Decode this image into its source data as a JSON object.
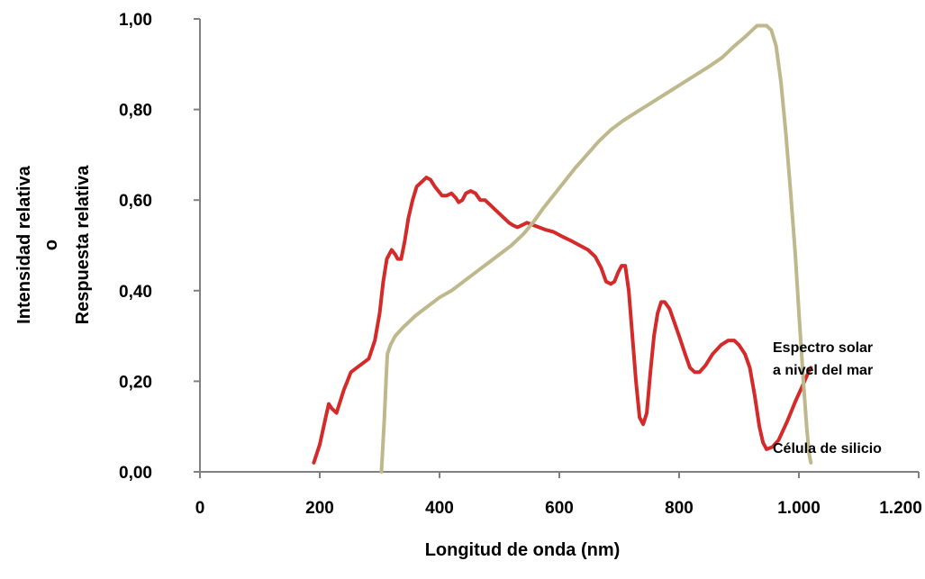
{
  "chart_data": {
    "type": "line",
    "title": "",
    "xlabel": "Longitud de onda (nm)",
    "ylabel_lines": [
      "Intensidad relativa",
      "o",
      "Respuesta relativa"
    ],
    "xlim": [
      0,
      1200
    ],
    "ylim": [
      0,
      1
    ],
    "x_ticks": [
      0,
      200,
      400,
      600,
      800,
      1000,
      1200
    ],
    "x_tick_labels": [
      "0",
      "200",
      "400",
      "600",
      "800",
      "1.000",
      "1.200"
    ],
    "y_ticks": [
      0,
      0.2,
      0.4,
      0.6,
      0.8,
      1.0
    ],
    "y_tick_labels": [
      "0,00",
      "0,20",
      "0,40",
      "0,60",
      "0,80",
      "1,00"
    ],
    "grid": false,
    "series": [
      {
        "name_lines": [
          "Espectro solar",
          "a nivel del mar"
        ],
        "color": "#d42a2a",
        "points": [
          [
            190,
            0.02
          ],
          [
            200,
            0.06
          ],
          [
            210,
            0.12
          ],
          [
            215,
            0.15
          ],
          [
            220,
            0.14
          ],
          [
            228,
            0.13
          ],
          [
            240,
            0.18
          ],
          [
            252,
            0.22
          ],
          [
            262,
            0.23
          ],
          [
            272,
            0.24
          ],
          [
            282,
            0.25
          ],
          [
            292,
            0.29
          ],
          [
            300,
            0.35
          ],
          [
            306,
            0.42
          ],
          [
            312,
            0.47
          ],
          [
            320,
            0.49
          ],
          [
            326,
            0.48
          ],
          [
            330,
            0.47
          ],
          [
            336,
            0.47
          ],
          [
            342,
            0.51
          ],
          [
            348,
            0.56
          ],
          [
            355,
            0.6
          ],
          [
            362,
            0.63
          ],
          [
            370,
            0.64
          ],
          [
            378,
            0.65
          ],
          [
            385,
            0.645
          ],
          [
            392,
            0.63
          ],
          [
            398,
            0.62
          ],
          [
            404,
            0.61
          ],
          [
            412,
            0.61
          ],
          [
            420,
            0.615
          ],
          [
            427,
            0.605
          ],
          [
            432,
            0.595
          ],
          [
            438,
            0.6
          ],
          [
            444,
            0.615
          ],
          [
            452,
            0.62
          ],
          [
            460,
            0.615
          ],
          [
            468,
            0.6
          ],
          [
            476,
            0.6
          ],
          [
            484,
            0.59
          ],
          [
            492,
            0.58
          ],
          [
            500,
            0.57
          ],
          [
            508,
            0.56
          ],
          [
            516,
            0.55
          ],
          [
            522,
            0.545
          ],
          [
            530,
            0.54
          ],
          [
            538,
            0.545
          ],
          [
            546,
            0.55
          ],
          [
            556,
            0.545
          ],
          [
            566,
            0.54
          ],
          [
            576,
            0.535
          ],
          [
            590,
            0.53
          ],
          [
            604,
            0.52
          ],
          [
            620,
            0.51
          ],
          [
            634,
            0.5
          ],
          [
            648,
            0.49
          ],
          [
            660,
            0.475
          ],
          [
            670,
            0.45
          ],
          [
            678,
            0.42
          ],
          [
            686,
            0.415
          ],
          [
            692,
            0.42
          ],
          [
            698,
            0.44
          ],
          [
            704,
            0.455
          ],
          [
            710,
            0.455
          ],
          [
            716,
            0.4
          ],
          [
            722,
            0.3
          ],
          [
            728,
            0.2
          ],
          [
            734,
            0.12
          ],
          [
            740,
            0.105
          ],
          [
            746,
            0.13
          ],
          [
            752,
            0.22
          ],
          [
            758,
            0.3
          ],
          [
            764,
            0.35
          ],
          [
            770,
            0.375
          ],
          [
            776,
            0.375
          ],
          [
            784,
            0.36
          ],
          [
            792,
            0.33
          ],
          [
            800,
            0.3
          ],
          [
            810,
            0.26
          ],
          [
            818,
            0.23
          ],
          [
            826,
            0.22
          ],
          [
            834,
            0.22
          ],
          [
            844,
            0.235
          ],
          [
            856,
            0.26
          ],
          [
            870,
            0.28
          ],
          [
            882,
            0.29
          ],
          [
            892,
            0.29
          ],
          [
            900,
            0.28
          ],
          [
            910,
            0.26
          ],
          [
            918,
            0.23
          ],
          [
            926,
            0.17
          ],
          [
            934,
            0.1
          ],
          [
            940,
            0.065
          ],
          [
            946,
            0.05
          ],
          [
            956,
            0.055
          ],
          [
            966,
            0.07
          ],
          [
            980,
            0.11
          ],
          [
            994,
            0.155
          ],
          [
            1006,
            0.19
          ],
          [
            1016,
            0.22
          ],
          [
            1020,
            0.23
          ]
        ]
      },
      {
        "name_lines": [
          "Célula de silicio"
        ],
        "color": "#bfb88c",
        "points": [
          [
            303,
            0.0
          ],
          [
            308,
            0.12
          ],
          [
            311,
            0.21
          ],
          [
            313,
            0.26
          ],
          [
            318,
            0.28
          ],
          [
            326,
            0.3
          ],
          [
            340,
            0.32
          ],
          [
            360,
            0.345
          ],
          [
            380,
            0.365
          ],
          [
            400,
            0.385
          ],
          [
            420,
            0.4
          ],
          [
            440,
            0.42
          ],
          [
            460,
            0.44
          ],
          [
            480,
            0.46
          ],
          [
            500,
            0.48
          ],
          [
            520,
            0.5
          ],
          [
            540,
            0.525
          ],
          [
            556,
            0.55
          ],
          [
            572,
            0.58
          ],
          [
            590,
            0.61
          ],
          [
            608,
            0.64
          ],
          [
            626,
            0.67
          ],
          [
            646,
            0.7
          ],
          [
            666,
            0.73
          ],
          [
            686,
            0.755
          ],
          [
            706,
            0.775
          ],
          [
            730,
            0.795
          ],
          [
            754,
            0.815
          ],
          [
            778,
            0.835
          ],
          [
            802,
            0.855
          ],
          [
            826,
            0.875
          ],
          [
            850,
            0.895
          ],
          [
            872,
            0.915
          ],
          [
            892,
            0.94
          ],
          [
            910,
            0.96
          ],
          [
            922,
            0.975
          ],
          [
            930,
            0.985
          ],
          [
            938,
            0.985
          ],
          [
            946,
            0.985
          ],
          [
            954,
            0.975
          ],
          [
            962,
            0.94
          ],
          [
            970,
            0.86
          ],
          [
            978,
            0.75
          ],
          [
            986,
            0.62
          ],
          [
            994,
            0.48
          ],
          [
            1001,
            0.33
          ],
          [
            1008,
            0.19
          ],
          [
            1013,
            0.1
          ],
          [
            1017,
            0.04
          ],
          [
            1020,
            0.02
          ]
        ]
      }
    ]
  }
}
